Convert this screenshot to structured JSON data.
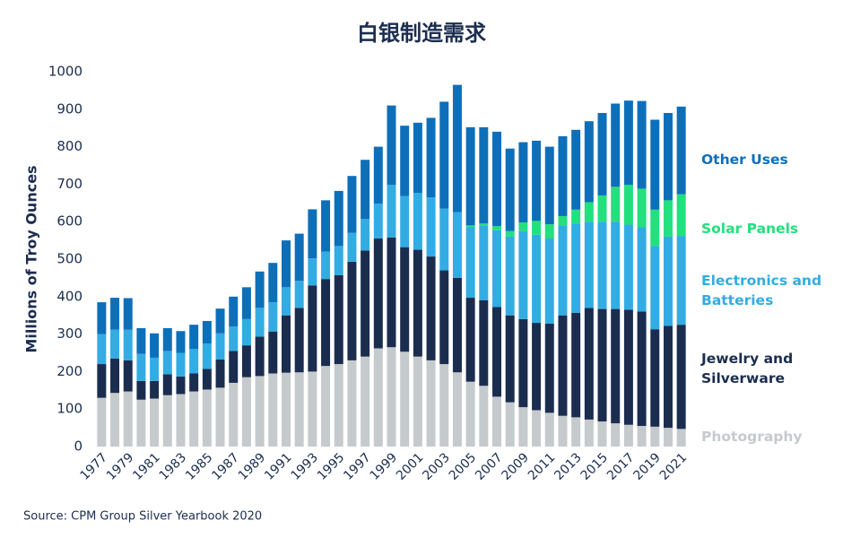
{
  "chart_data": {
    "type": "stacked_bar",
    "title": "白银制造需求",
    "y_label": "Millions of Troy Ounces",
    "source": "Source: CPM Group Silver Yearbook 2020",
    "categories": [
      "1977",
      null,
      "1979",
      null,
      "1981",
      null,
      "1983",
      null,
      "1985",
      null,
      "1987",
      null,
      "1989",
      null,
      "1991",
      null,
      "1993",
      null,
      "1995",
      null,
      "1997",
      null,
      "1999",
      null,
      "2001",
      null,
      "2003",
      null,
      "2005",
      null,
      "2007",
      null,
      "2009",
      null,
      "2011",
      null,
      "2013",
      null,
      "2015",
      null,
      "2017",
      null,
      "2019",
      null,
      "2021"
    ],
    "series": [
      {
        "name": "Photography",
        "color": "#c5cacd",
        "values": [
          130,
          143,
          147,
          125,
          128,
          137,
          140,
          147,
          152,
          157,
          170,
          185,
          188,
          195,
          197,
          198,
          200,
          215,
          220,
          230,
          240,
          262,
          265,
          253,
          240,
          230,
          220,
          198,
          173,
          162,
          133,
          118,
          105,
          97,
          90,
          82,
          78,
          72,
          67,
          62,
          58,
          55,
          53,
          50,
          47
        ]
      },
      {
        "name": "Jewelry and Silverware",
        "color": "#1b2d4f",
        "values": [
          90,
          92,
          83,
          50,
          47,
          56,
          47,
          48,
          55,
          75,
          85,
          85,
          105,
          112,
          153,
          172,
          230,
          232,
          237,
          263,
          283,
          293,
          293,
          279,
          285,
          277,
          250,
          252,
          224,
          228,
          239,
          232,
          235,
          233,
          238,
          268,
          279,
          298,
          300,
          305,
          307,
          305,
          260,
          272,
          278
        ]
      },
      {
        "name": "Electronics and Batteries",
        "color": "#33ace3",
        "values": [
          80,
          77,
          82,
          72,
          62,
          62,
          63,
          65,
          68,
          70,
          65,
          70,
          77,
          78,
          75,
          72,
          72,
          73,
          78,
          77,
          84,
          93,
          140,
          136,
          152,
          158,
          165,
          175,
          188,
          200,
          205,
          210,
          235,
          235,
          227,
          240,
          238,
          230,
          233,
          233,
          227,
          225,
          222,
          238,
          237
        ]
      },
      {
        "name": "Solar Panels",
        "color": "#22e07d",
        "values": [
          0,
          0,
          0,
          0,
          0,
          0,
          0,
          0,
          0,
          0,
          0,
          0,
          0,
          0,
          0,
          0,
          0,
          0,
          0,
          0,
          0,
          0,
          0,
          0,
          0,
          0,
          0,
          0,
          5,
          5,
          11,
          15,
          23,
          37,
          38,
          25,
          37,
          52,
          70,
          93,
          106,
          103,
          97,
          97,
          111
        ]
      },
      {
        "name": "Other Uses",
        "color": "#0e6fb9",
        "values": [
          85,
          85,
          84,
          69,
          65,
          61,
          58,
          65,
          60,
          66,
          80,
          85,
          97,
          105,
          125,
          126,
          131,
          137,
          147,
          152,
          158,
          152,
          212,
          188,
          187,
          212,
          285,
          340,
          262,
          257,
          252,
          220,
          214,
          214,
          207,
          213,
          213,
          216,
          220,
          222,
          225,
          234,
          240,
          233,
          234
        ]
      }
    ],
    "ylim": [
      0,
      1000
    ],
    "yticks": [
      0,
      100,
      200,
      300,
      400,
      500,
      600,
      700,
      800,
      900,
      1000
    ],
    "grid": false
  }
}
